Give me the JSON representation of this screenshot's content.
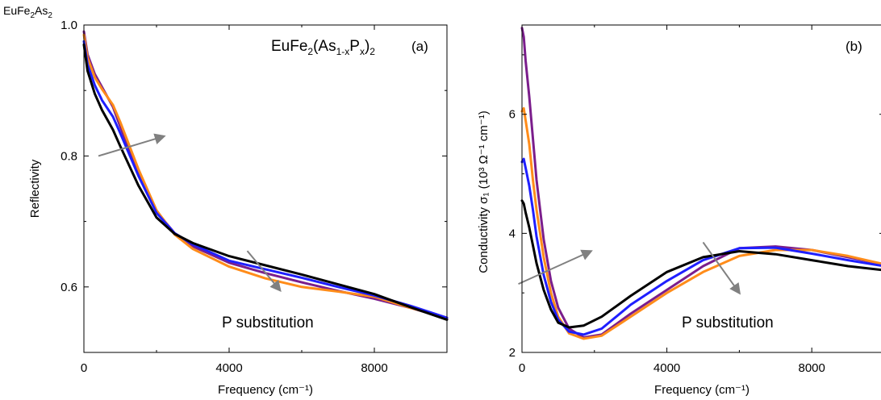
{
  "figure": {
    "corner_label": {
      "base": "EuFe",
      "sub1": "2",
      "mid": "As",
      "sub2": "2"
    },
    "colors": {
      "black": "#000000",
      "blue": "#1f1fff",
      "purple": "#7b1e8c",
      "orange": "#ff8c1a",
      "arrow": "#808080"
    }
  },
  "chart_data": [
    {
      "type": "line",
      "panel": "a",
      "panel_letter": "(a)",
      "title_formula": {
        "t1": "EuFe",
        "s1": "2",
        "t2": "(As",
        "s2": "1-x",
        "t3": "P",
        "s3": "x",
        "t4": ")",
        "s4": "2"
      },
      "xlabel": "Frequency (cm⁻¹)",
      "ylabel": "Reflectivity",
      "xlim": [
        0,
        10000
      ],
      "ylim": [
        0.5,
        1.0
      ],
      "x_ticks": [
        0,
        4000,
        8000
      ],
      "x_tick_labels": [
        "0",
        "4000",
        "8000"
      ],
      "y_ticks": [
        0.6,
        0.8,
        1.0
      ],
      "y_tick_labels": [
        "0.6",
        "0.8",
        "1.0"
      ],
      "annotation": "P substitution",
      "grid": false,
      "legend": "none",
      "series": [
        {
          "color": "#7b1e8c",
          "x": [
            0,
            100,
            300,
            500,
            800,
            1000,
            1500,
            2000,
            2500,
            3000,
            4000,
            5000,
            6000,
            7000,
            8000,
            9000,
            10000
          ],
          "y": [
            0.99,
            0.955,
            0.925,
            0.905,
            0.875,
            0.845,
            0.775,
            0.715,
            0.682,
            0.662,
            0.637,
            0.621,
            0.607,
            0.594,
            0.582,
            0.568,
            0.552
          ]
        },
        {
          "color": "#ff8c1a",
          "x": [
            0,
            100,
            300,
            500,
            800,
            1000,
            1500,
            2000,
            2500,
            3000,
            4000,
            5000,
            6000,
            7000,
            8000,
            9000,
            10000
          ],
          "y": [
            0.985,
            0.95,
            0.92,
            0.902,
            0.878,
            0.852,
            0.78,
            0.717,
            0.68,
            0.658,
            0.631,
            0.613,
            0.6,
            0.593,
            0.585,
            0.568,
            0.553
          ]
        },
        {
          "color": "#1f1fff",
          "x": [
            0,
            100,
            300,
            500,
            800,
            1000,
            1500,
            2000,
            2500,
            3000,
            4000,
            5000,
            6000,
            7000,
            8000,
            9000,
            10000
          ],
          "y": [
            0.975,
            0.94,
            0.908,
            0.885,
            0.86,
            0.835,
            0.77,
            0.713,
            0.682,
            0.665,
            0.64,
            0.627,
            0.614,
            0.6,
            0.587,
            0.571,
            0.553
          ]
        },
        {
          "color": "#000000",
          "x": [
            0,
            100,
            300,
            500,
            800,
            1000,
            1500,
            2000,
            2500,
            3000,
            4000,
            5000,
            6000,
            7000,
            8000,
            9000,
            10000
          ],
          "y": [
            0.97,
            0.93,
            0.895,
            0.87,
            0.84,
            0.815,
            0.755,
            0.706,
            0.681,
            0.667,
            0.647,
            0.633,
            0.619,
            0.604,
            0.589,
            0.569,
            0.55
          ]
        }
      ],
      "arrows": [
        {
          "x1": 400,
          "y1": 0.8,
          "x2": 2200,
          "y2": 0.83
        },
        {
          "x1": 4500,
          "y1": 0.655,
          "x2": 5400,
          "y2": 0.595
        }
      ]
    },
    {
      "type": "line",
      "panel": "b",
      "panel_letter": "(b)",
      "xlabel": "Frequency (cm⁻¹)",
      "ylabel": "Conductivity σ₁ (10³ Ω⁻¹ cm⁻¹)",
      "xlim": [
        0,
        10000
      ],
      "ylim": [
        2,
        7.5
      ],
      "x_ticks": [
        0,
        4000,
        8000
      ],
      "x_tick_labels": [
        "0",
        "4000",
        "8000"
      ],
      "y_ticks": [
        2,
        4,
        6
      ],
      "y_tick_labels": [
        "2",
        "4",
        "6"
      ],
      "annotation": "P substitution",
      "grid": false,
      "legend": "none",
      "series": [
        {
          "color": "#7b1e8c",
          "x": [
            0,
            50,
            100,
            200,
            300,
            400,
            600,
            800,
            1000,
            1300,
            1700,
            2200,
            3000,
            4000,
            5000,
            6000,
            7000,
            8000,
            9000,
            10000
          ],
          "y": [
            7.45,
            7.3,
            6.9,
            6.3,
            5.6,
            4.9,
            3.9,
            3.2,
            2.75,
            2.4,
            2.25,
            2.3,
            2.65,
            3.05,
            3.45,
            3.75,
            3.78,
            3.72,
            3.6,
            3.48
          ]
        },
        {
          "color": "#ff8c1a",
          "x": [
            0,
            50,
            100,
            200,
            300,
            400,
            600,
            800,
            1000,
            1300,
            1700,
            2200,
            3000,
            4000,
            5000,
            6000,
            7000,
            8000,
            9000,
            10000
          ],
          "y": [
            6.05,
            6.1,
            5.9,
            5.5,
            4.9,
            4.4,
            3.6,
            3.0,
            2.6,
            2.32,
            2.23,
            2.28,
            2.6,
            3.0,
            3.35,
            3.62,
            3.72,
            3.72,
            3.62,
            3.48
          ]
        },
        {
          "color": "#1f1fff",
          "x": [
            0,
            50,
            100,
            200,
            300,
            400,
            600,
            800,
            1000,
            1300,
            1700,
            2200,
            3000,
            4000,
            5000,
            6000,
            7000,
            8000,
            9000,
            10000
          ],
          "y": [
            5.2,
            5.25,
            5.1,
            4.8,
            4.4,
            3.95,
            3.3,
            2.85,
            2.55,
            2.35,
            2.3,
            2.4,
            2.8,
            3.2,
            3.55,
            3.75,
            3.76,
            3.66,
            3.55,
            3.45
          ]
        },
        {
          "color": "#000000",
          "x": [
            0,
            50,
            100,
            200,
            300,
            400,
            600,
            800,
            1000,
            1300,
            1700,
            2200,
            3000,
            4000,
            5000,
            6000,
            7000,
            8000,
            9000,
            10000
          ],
          "y": [
            4.55,
            4.5,
            4.35,
            4.1,
            3.8,
            3.5,
            3.05,
            2.72,
            2.5,
            2.42,
            2.45,
            2.6,
            2.95,
            3.35,
            3.6,
            3.7,
            3.65,
            3.55,
            3.45,
            3.38
          ]
        }
      ],
      "arrows": [
        {
          "x1": -100,
          "y1": 3.15,
          "x2": 1900,
          "y2": 3.7
        },
        {
          "x1": 5000,
          "y1": 3.85,
          "x2": 6000,
          "y2": 3.0
        }
      ]
    }
  ]
}
